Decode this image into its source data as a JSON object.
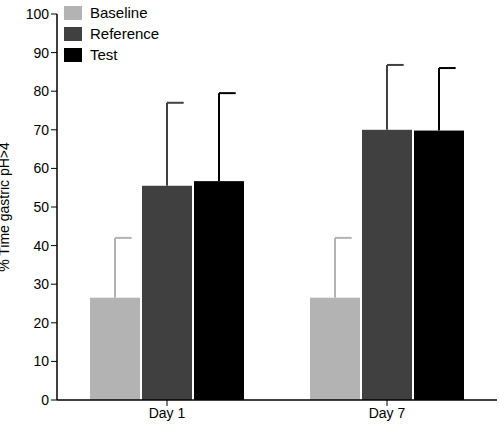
{
  "chart_data": {
    "type": "bar",
    "categories": [
      "Day 1",
      "Day 7"
    ],
    "series": [
      {
        "name": "Baseline",
        "color": "#b3b3b3",
        "values": [
          26.5,
          26.5
        ],
        "errors": [
          15.5,
          15.5
        ]
      },
      {
        "name": "Reference",
        "color": "#404040",
        "values": [
          55.5,
          70
        ],
        "errors": [
          21.5,
          16.8
        ]
      },
      {
        "name": "Test",
        "color": "#000000",
        "values": [
          56.7,
          69.8
        ],
        "errors": [
          22.8,
          16.2
        ]
      }
    ],
    "y_label": "% Time gastric pH>4",
    "ylim": [
      0,
      100
    ],
    "yticks": [
      0,
      10,
      20,
      30,
      40,
      50,
      60,
      70,
      80,
      90,
      100
    ],
    "grid": false,
    "legend": "top-left"
  }
}
